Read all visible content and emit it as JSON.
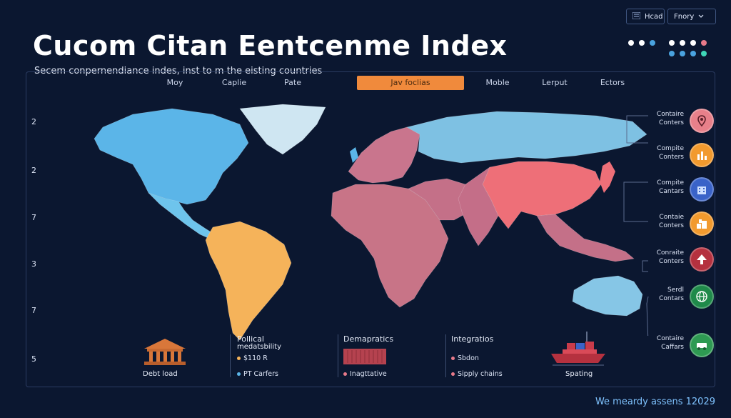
{
  "header": {
    "title": "Cucom Citan Eentcenme Index",
    "subtitle": "Secem conpernendiance indes, inst to m the eisting countries"
  },
  "top_buttons": [
    {
      "label": "Hcad",
      "icon": "list-icon"
    },
    {
      "label": "Fnory",
      "icon": "chevron-down-icon"
    }
  ],
  "color_dots": {
    "row1": [
      "#ffffff",
      "#ffffff",
      "#4aa3df"
    ],
    "row2": [
      "#ffffff",
      "#ffffff",
      "#ffffff",
      "#e87a8a"
    ],
    "row3": [
      "#4aa3df",
      "#4aa3df",
      "#4aa3df",
      "#3fd6b8"
    ]
  },
  "tabs": [
    {
      "label": "Moy",
      "active": false
    },
    {
      "label": "Caplie",
      "active": false
    },
    {
      "label": "Pate",
      "active": false
    },
    {
      "label": "Jav foclias",
      "active": true
    },
    {
      "label": "Moble",
      "active": false
    },
    {
      "label": "Lerput",
      "active": false
    },
    {
      "label": "Ectors",
      "active": false
    }
  ],
  "y_axis": [
    "2",
    "2",
    "7",
    "3",
    "7",
    "5"
  ],
  "map": {
    "regions": [
      {
        "name": "north-america",
        "color": "#5bb5e8"
      },
      {
        "name": "greenland",
        "color": "#cfe6f2"
      },
      {
        "name": "mexico",
        "color": "#6ec4ec"
      },
      {
        "name": "south-america",
        "color": "#f5b35a"
      },
      {
        "name": "europe",
        "color": "#c9758d"
      },
      {
        "name": "russia",
        "color": "#7ec1e3"
      },
      {
        "name": "africa",
        "color": "#c87487"
      },
      {
        "name": "middle-east",
        "color": "#c47088"
      },
      {
        "name": "china",
        "color": "#ee6f78"
      },
      {
        "name": "india",
        "color": "#c46e88"
      },
      {
        "name": "southeast-asia",
        "color": "#c47088"
      },
      {
        "name": "australia",
        "color": "#86c6e6"
      }
    ]
  },
  "indicators": [
    {
      "label1": "Contaire",
      "label2": "Conters",
      "color": "#e8808a",
      "icon": "pin-icon"
    },
    {
      "label1": "Compite",
      "label2": "Conters",
      "color": "#f29a2e",
      "icon": "chart-bars-icon"
    },
    {
      "label1": "Compite",
      "label2": "Cantars",
      "color": "#3a63c8",
      "icon": "building-icon"
    },
    {
      "label1": "Contaie",
      "label2": "Conters",
      "color": "#f29a2e",
      "icon": "boxes-icon"
    },
    {
      "label1": "Conraite",
      "label2": "Conters",
      "color": "#b5313f",
      "icon": "arrow-up-icon"
    },
    {
      "label1": "Serdl",
      "label2": "Contars",
      "color": "#1f8a4a",
      "icon": "globe-icon"
    },
    {
      "label1": "Contaire",
      "label2": "Caffars",
      "color": "#2e9a52",
      "icon": "vehicle-icon"
    }
  ],
  "bottom": {
    "debt": {
      "label": "Debt load",
      "icon": "building-icon"
    },
    "political": {
      "title1": "Pollical",
      "title2": "medatsbility",
      "rows": [
        {
          "text": "$110 R",
          "color": "#f5b35a"
        },
        {
          "text": "PT Carfers",
          "color": "#5bb5e8"
        }
      ]
    },
    "demographics": {
      "title": "Demapratics",
      "rows": [
        {
          "text": "Inagttative",
          "color": "#e87a8a"
        }
      ]
    },
    "integrations": {
      "title": "Integratios",
      "rows": [
        {
          "text": "Sbdon",
          "color": "#e87a8a"
        },
        {
          "text": "Sipply chains",
          "color": "#e87a8a"
        }
      ]
    },
    "shipping": {
      "label": "Spating",
      "icon": "ship-icon"
    }
  },
  "footer": {
    "text": "We meardy assens 12029"
  }
}
